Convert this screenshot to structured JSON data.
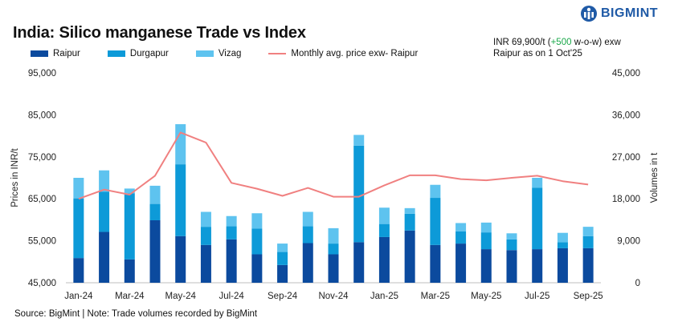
{
  "header": {
    "title": "India: Silico manganese Trade vs Index",
    "logo_text": "BIGMINT"
  },
  "note": {
    "part1": "INR 69,900/t (",
    "change": "+500",
    "part2": " w-o-w) exw",
    "line2": "Raipur as on 1 Oct'25"
  },
  "legend": {
    "raipur": "Raipur",
    "durgapur": "Durgapur",
    "vizag": "Vizag",
    "price": "Monthly avg. price exw- Raipur"
  },
  "footer": {
    "source": "Source: BigMint | Note: Trade volumes recorded by BigMint"
  },
  "colors": {
    "raipur": "#0b4a9e",
    "durgapur": "#0d9ad8",
    "vizag": "#5ec3ef",
    "price": "#f08080",
    "change_positive": "#1aa84a",
    "logo": "#1f5aa6"
  },
  "chart_data": {
    "type": "bar",
    "stacked": true,
    "categories": [
      "Jan-24",
      "Feb-24",
      "Mar-24",
      "Apr-24",
      "May-24",
      "Jun-24",
      "Jul-24",
      "Aug-24",
      "Sep-24",
      "Oct-24",
      "Nov-24",
      "Dec-24",
      "Jan-25",
      "Feb-25",
      "Mar-25",
      "Apr-25",
      "May-25",
      "Jun-25",
      "Jul-25",
      "Aug-25",
      "Sep-25"
    ],
    "x_tick_labels": [
      "Jan-24",
      "Mar-24",
      "May-24",
      "Jul-24",
      "Sep-24",
      "Nov-24",
      "Jan-25",
      "Mar-25",
      "May-25",
      "Jul-25",
      "Sep-25"
    ],
    "series": [
      {
        "name": "Raipur",
        "axis": "right",
        "values": [
          5300,
          10900,
          5000,
          13400,
          10000,
          8100,
          9300,
          6100,
          3800,
          8500,
          6100,
          8700,
          9800,
          11200,
          8100,
          8400,
          7200,
          7000,
          7200,
          7400,
          7400
        ]
      },
      {
        "name": "Durgapur",
        "axis": "right",
        "values": [
          12800,
          8600,
          14200,
          3500,
          15400,
          3900,
          2800,
          5500,
          2800,
          3600,
          2300,
          20700,
          2800,
          3600,
          10100,
          2600,
          3600,
          2300,
          13200,
          1300,
          2600
        ]
      },
      {
        "name": "Vizag",
        "axis": "right",
        "values": [
          4400,
          4600,
          1000,
          3900,
          8600,
          3200,
          2200,
          3300,
          1800,
          3100,
          3300,
          2300,
          3500,
          1200,
          2800,
          1800,
          2100,
          1300,
          2100,
          2000,
          2000
        ]
      },
      {
        "name": "Monthly avg. price exw- Raipur",
        "type": "line",
        "axis": "left",
        "values": [
          65000,
          67200,
          66000,
          70500,
          80800,
          78400,
          68800,
          67400,
          65700,
          67600,
          65500,
          65500,
          68200,
          70600,
          70600,
          69700,
          69400,
          70000,
          70500,
          69200,
          68400
        ]
      }
    ],
    "ylabel": "Prices in INR/t",
    "y2label": "Volumes in t",
    "ylim": [
      45000,
      95000
    ],
    "y_ticks": [
      45000,
      55000,
      65000,
      75000,
      85000,
      95000
    ],
    "y_tick_labels": [
      "45,000",
      "55,000",
      "65,000",
      "75,000",
      "85,000",
      "95,000"
    ],
    "y2lim": [
      0,
      45000
    ],
    "y2_ticks": [
      0,
      9000,
      18000,
      27000,
      36000,
      45000
    ],
    "y2_tick_labels": [
      "0",
      "9,000",
      "18,000",
      "27,000",
      "36,000",
      "45,000"
    ],
    "grid": false
  }
}
